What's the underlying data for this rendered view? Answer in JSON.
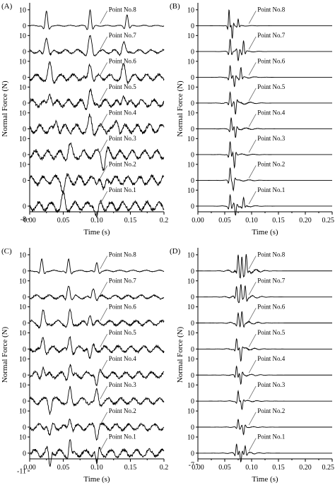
{
  "figure": {
    "y_label": "Normal Force (N)",
    "x_label": "Time (s)"
  },
  "chart_data": [
    {
      "type": "line",
      "panel_label": "(A)",
      "xlabel": "Time (s)",
      "ylabel": "Normal Force (N)",
      "xlim": [
        0,
        0.2
      ],
      "x_ticks": [
        "0.00",
        "0.05",
        "0.10",
        "0.15",
        "0.2"
      ],
      "series": [
        {
          "name": "Point No.8",
          "y_ticks": [
            "10",
            "0"
          ],
          "waveform": {
            "t": [
              0.025,
              0.09,
              0.145
            ],
            "amp": [
              9,
              10,
              7
            ],
            "width": 0.004,
            "noise": 0.4,
            "decay": "none"
          }
        },
        {
          "name": "Point No.7",
          "y_ticks": [
            "10",
            "0"
          ],
          "waveform": {
            "t": [
              0.025,
              0.09,
              0.14
            ],
            "amp": [
              9,
              9,
              6
            ],
            "width": 0.006,
            "noise": 1.5,
            "decay": "none"
          }
        },
        {
          "name": "Point No.6",
          "y_ticks": [
            "10",
            "0"
          ],
          "waveform": {
            "t": [
              0.03,
              0.09,
              0.14
            ],
            "amp": [
              8,
              9,
              7
            ],
            "width": 0.006,
            "noise": 2.5,
            "decay": "none"
          }
        },
        {
          "name": "Point No.5",
          "y_ticks": [
            "10",
            "0"
          ],
          "waveform": {
            "t": [
              0.03,
              0.09,
              0.14
            ],
            "amp": [
              7,
              8,
              6
            ],
            "width": 0.006,
            "noise": 3.0,
            "decay": "none"
          }
        },
        {
          "name": "Point No.4",
          "y_ticks": [
            "10",
            "0"
          ],
          "waveform": {
            "t": [
              0.04,
              0.09,
              0.13
            ],
            "amp": [
              6,
              7,
              6
            ],
            "width": 0.006,
            "noise": 3.5,
            "decay": "none"
          }
        },
        {
          "name": "Point No.3",
          "y_ticks": [
            "10",
            "0"
          ],
          "waveform": {
            "t": [
              0.06,
              0.11
            ],
            "amp": [
              6,
              -8
            ],
            "width": 0.006,
            "noise": 3.5,
            "decay": "none"
          }
        },
        {
          "name": "Point No.2",
          "y_ticks": [
            "10",
            "0"
          ],
          "waveform": {
            "t": [
              0.05,
              0.11
            ],
            "amp": [
              -6,
              -8
            ],
            "width": 0.006,
            "noise": 3.5,
            "decay": "none"
          }
        },
        {
          "name": "Point No.1",
          "y_ticks": [
            "0",
            "-8"
          ],
          "waveform": {
            "t": [
              0.05,
              0.1
            ],
            "amp": [
              6,
              -7
            ],
            "width": 0.006,
            "noise": 3.5,
            "decay": "none"
          }
        }
      ]
    },
    {
      "type": "line",
      "panel_label": "(B)",
      "xlabel": "Time (s)",
      "ylabel": "Normal Force (N)",
      "xlim": [
        0,
        0.25
      ],
      "x_ticks": [
        "0.00",
        "0.05",
        "0.10",
        "0.15",
        "0.20",
        "0.25"
      ],
      "series": [
        {
          "name": "Point No.8",
          "y_ticks": [
            "10",
            "0"
          ],
          "waveform": {
            "t": [
              0.058,
              0.064,
              0.075
            ],
            "amp": [
              10,
              -8,
              4
            ],
            "width": 0.0025,
            "noise": 0.3,
            "decay": "after",
            "decay_start": 0.1
          }
        },
        {
          "name": "Point No.7",
          "y_ticks": [
            "10",
            "0"
          ],
          "waveform": {
            "t": [
              0.06,
              0.075,
              0.085
            ],
            "amp": [
              8,
              -6,
              7
            ],
            "width": 0.003,
            "noise": 0.6,
            "decay": "after",
            "decay_start": 0.1
          }
        },
        {
          "name": "Point No.6",
          "y_ticks": [
            "10",
            "0"
          ],
          "waveform": {
            "t": [
              0.06,
              0.068,
              0.08
            ],
            "amp": [
              7,
              -6,
              6
            ],
            "width": 0.003,
            "noise": 0.8,
            "decay": "after",
            "decay_start": 0.1
          }
        },
        {
          "name": "Point No.5",
          "y_ticks": [
            "10",
            "0"
          ],
          "waveform": {
            "t": [
              0.06,
              0.07
            ],
            "amp": [
              7,
              -7
            ],
            "width": 0.003,
            "noise": 1.0,
            "decay": "after",
            "decay_start": 0.1
          }
        },
        {
          "name": "Point No.4",
          "y_ticks": [
            "10",
            "0"
          ],
          "waveform": {
            "t": [
              0.062,
              0.07
            ],
            "amp": [
              7,
              -6
            ],
            "width": 0.003,
            "noise": 0.8,
            "decay": "after",
            "decay_start": 0.1
          }
        },
        {
          "name": "Point No.3",
          "y_ticks": [
            "10",
            "0"
          ],
          "waveform": {
            "t": [
              0.06,
              0.068
            ],
            "amp": [
              8,
              -8
            ],
            "width": 0.003,
            "noise": 0.6,
            "decay": "after",
            "decay_start": 0.1
          }
        },
        {
          "name": "Point No.2",
          "y_ticks": [
            "10",
            "0"
          ],
          "waveform": {
            "t": [
              0.06,
              0.066
            ],
            "amp": [
              8,
              -6
            ],
            "width": 0.003,
            "noise": 0.6,
            "decay": "after",
            "decay_start": 0.1
          }
        },
        {
          "name": "Point No.1",
          "y_ticks": [
            "10",
            "0"
          ],
          "waveform": {
            "t": [
              0.06,
              0.07,
              0.085
            ],
            "amp": [
              7,
              -6,
              5
            ],
            "width": 0.003,
            "noise": 0.8,
            "decay": "after",
            "decay_start": 0.1
          }
        }
      ]
    },
    {
      "type": "line",
      "panel_label": "(C)",
      "xlabel": "Time (s)",
      "ylabel": "Normal Force (N)",
      "xlim": [
        0,
        0.2
      ],
      "x_ticks": [
        "0.00",
        "0.05",
        "0.10",
        "0.15",
        "0.2"
      ],
      "series": [
        {
          "name": "Point No.8",
          "y_ticks": [
            "10",
            "0"
          ],
          "waveform": {
            "t": [
              0.018,
              0.058,
              0.1
            ],
            "amp": [
              7,
              7,
              5
            ],
            "width": 0.004,
            "noise": 0.6,
            "decay": "none"
          }
        },
        {
          "name": "Point No.7",
          "y_ticks": [
            "10",
            "0"
          ],
          "waveform": {
            "t": [
              0.058,
              0.095
            ],
            "amp": [
              8,
              6
            ],
            "width": 0.005,
            "noise": 1.5,
            "decay": "none"
          }
        },
        {
          "name": "Point No.6",
          "y_ticks": [
            "10",
            "0"
          ],
          "waveform": {
            "t": [
              0.02,
              0.06,
              0.09
            ],
            "amp": [
              7,
              7,
              6
            ],
            "width": 0.005,
            "noise": 2.0,
            "decay": "none"
          }
        },
        {
          "name": "Point No.5",
          "y_ticks": [
            "10",
            "0"
          ],
          "waveform": {
            "t": [
              0.02,
              0.06,
              0.09
            ],
            "amp": [
              7,
              8,
              -7
            ],
            "width": 0.005,
            "noise": 2.5,
            "decay": "none"
          }
        },
        {
          "name": "Point No.4",
          "y_ticks": [
            "10",
            "0"
          ],
          "waveform": {
            "t": [
              0.02,
              0.06,
              0.1
            ],
            "amp": [
              6,
              7,
              -6
            ],
            "width": 0.005,
            "noise": 2.5,
            "decay": "none"
          }
        },
        {
          "name": "Point No.3",
          "y_ticks": [
            "10",
            "0"
          ],
          "waveform": {
            "t": [
              0.03,
              0.06,
              0.1
            ],
            "amp": [
              -6,
              7,
              6
            ],
            "width": 0.005,
            "noise": 2.5,
            "decay": "none"
          }
        },
        {
          "name": "Point No.2",
          "y_ticks": [
            "10",
            "0"
          ],
          "waveform": {
            "t": [
              0.03,
              0.06,
              0.1
            ],
            "amp": [
              -6,
              6,
              -6
            ],
            "width": 0.005,
            "noise": 2.5,
            "decay": "none"
          }
        },
        {
          "name": "Point No.1",
          "y_ticks": [
            "10",
            "0",
            "-11"
          ],
          "waveform": {
            "t": [
              0.03,
              0.06,
              0.1
            ],
            "amp": [
              -9,
              8,
              -8
            ],
            "width": 0.004,
            "noise": 3.0,
            "decay": "none"
          }
        }
      ]
    },
    {
      "type": "line",
      "panel_label": "(D)",
      "xlabel": "Time (s)",
      "ylabel": "Normal Force (N)",
      "xlim": [
        0,
        0.25
      ],
      "x_ticks": [
        "0.00",
        "0.05",
        "0.10",
        "0.15",
        "0.20",
        "0.25"
      ],
      "series": [
        {
          "name": "Point No.8",
          "y_ticks": [
            "10",
            "0"
          ],
          "waveform": {
            "t": [
              0.075,
              0.082,
              0.09
            ],
            "amp": [
              9,
              10,
              9
            ],
            "width": 0.003,
            "noise": 2.0,
            "decay": "after",
            "decay_start": 0.1
          }
        },
        {
          "name": "Point No.7",
          "y_ticks": [
            "10",
            "0"
          ],
          "waveform": {
            "t": [
              0.072,
              0.08,
              0.088
            ],
            "amp": [
              7,
              8,
              7
            ],
            "width": 0.003,
            "noise": 1.5,
            "decay": "after",
            "decay_start": 0.1
          }
        },
        {
          "name": "Point No.6",
          "y_ticks": [
            "10",
            "0"
          ],
          "waveform": {
            "t": [
              0.075,
              0.082
            ],
            "amp": [
              6,
              7
            ],
            "width": 0.003,
            "noise": 1.2,
            "decay": "after",
            "decay_start": 0.1
          }
        },
        {
          "name": "Point No.5",
          "y_ticks": [
            "10",
            "0"
          ],
          "waveform": {
            "t": [
              0.072,
              0.08
            ],
            "amp": [
              6,
              -7
            ],
            "width": 0.003,
            "noise": 1.0,
            "decay": "after",
            "decay_start": 0.1
          }
        },
        {
          "name": "Point No.4",
          "y_ticks": [
            "10",
            "0"
          ],
          "waveform": {
            "t": [
              0.072,
              0.08
            ],
            "amp": [
              6,
              -6
            ],
            "width": 0.003,
            "noise": 0.8,
            "decay": "after",
            "decay_start": 0.1
          }
        },
        {
          "name": "Point No.3",
          "y_ticks": [
            "10",
            "0"
          ],
          "waveform": {
            "t": [
              0.075,
              0.082
            ],
            "amp": [
              6,
              -5
            ],
            "width": 0.003,
            "noise": 0.6,
            "decay": "after",
            "decay_start": 0.1
          }
        },
        {
          "name": "Point No.2",
          "y_ticks": [
            "10",
            "0"
          ],
          "waveform": {
            "t": [
              0.075,
              0.085
            ],
            "amp": [
              5,
              -5
            ],
            "width": 0.003,
            "noise": 0.5,
            "decay": "after",
            "decay_start": 0.1
          }
        },
        {
          "name": "Point No.1",
          "y_ticks": [
            "10",
            "0",
            "-7"
          ],
          "waveform": {
            "t": [
              0.072,
              0.08,
              0.088
            ],
            "amp": [
              6,
              -6,
              5
            ],
            "width": 0.003,
            "noise": 0.8,
            "decay": "after",
            "decay_start": 0.1
          }
        }
      ]
    }
  ]
}
